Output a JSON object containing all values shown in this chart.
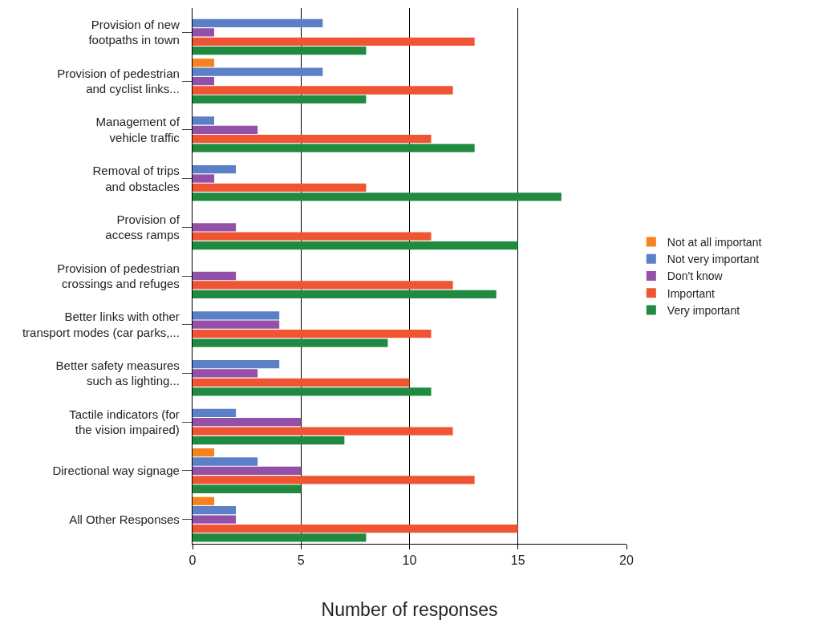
{
  "chart_data": {
    "type": "bar",
    "orientation": "horizontal",
    "xlabel": "Number of responses",
    "categories": [
      "Provision of new\nfootpaths in town",
      "Provision of pedestrian\nand cyclist links...",
      "Management of\nvehicle traffic",
      "Removal of trips\nand obstacles",
      "Provision of\naccess ramps",
      "Provision of pedestrian\ncrossings and refuges",
      "Better links with other\ntransport modes (car parks,...",
      "Better safety measures\nsuch as lighting...",
      "Tactile indicators (for\nthe vision impaired)",
      "Directional way signage",
      "All Other Responses"
    ],
    "series": [
      {
        "name": "Not at all important",
        "color": "#f5821f",
        "values": [
          0,
          1,
          0,
          0,
          0,
          0,
          0,
          0,
          0,
          1,
          1
        ]
      },
      {
        "name": "Not very important",
        "color": "#5b80c8",
        "values": [
          6,
          6,
          1,
          2,
          0,
          0,
          4,
          4,
          2,
          3,
          2
        ]
      },
      {
        "name": "Don't know",
        "color": "#9350a8",
        "values": [
          1,
          1,
          3,
          1,
          2,
          2,
          4,
          3,
          5,
          5,
          2
        ]
      },
      {
        "name": "Important",
        "color": "#ef5533",
        "values": [
          13,
          12,
          11,
          8,
          11,
          12,
          11,
          10,
          12,
          13,
          15
        ]
      },
      {
        "name": "Very important",
        "color": "#1f8a40",
        "values": [
          8,
          8,
          13,
          17,
          15,
          14,
          9,
          11,
          7,
          5,
          8
        ]
      }
    ],
    "xlim": [
      0,
      20
    ],
    "xticks": [
      0,
      5,
      10,
      15,
      20
    ],
    "grid": "x",
    "legend": "right"
  }
}
